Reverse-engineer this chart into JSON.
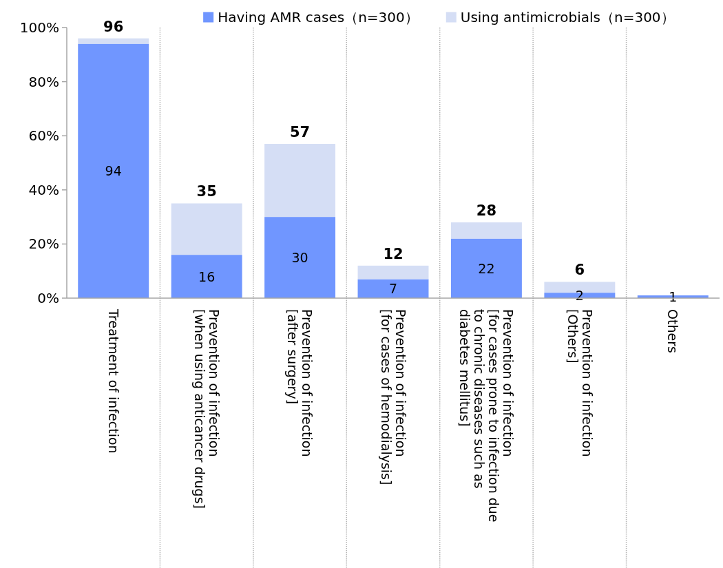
{
  "chart_data": {
    "type": "bar",
    "stacked": true,
    "categories": [
      "Treatment of infection",
      "Prevention of infection\n[when using anticancer drugs]",
      "Prevention of infection\n[after surgery]",
      "Prevention of infection\n[for cases of hemodialysis]",
      "Prevention of infection\n[for cases prone to infection due\nto chronic diseases such as\ndiabetes mellitus]",
      "Prevention of infection\n[Others]",
      "Others"
    ],
    "series": [
      {
        "name": "Having AMR cases（n=300）",
        "color": "#7096ff",
        "values": [
          94,
          16,
          30,
          7,
          22,
          2,
          1
        ],
        "value_labels": [
          "94",
          "16",
          "30",
          "7",
          "22",
          "2",
          "1"
        ]
      },
      {
        "name": "Using antimicrobials（n=300）",
        "color": "#d5def5",
        "values": [
          2,
          19,
          27,
          5,
          6,
          4,
          null
        ]
      }
    ],
    "totals": [
      "96",
      "35",
      "57",
      "12",
      "28",
      "6",
      null
    ],
    "ylim": [
      0,
      100
    ],
    "yticks": [
      {
        "value": 0,
        "label": "0%"
      },
      {
        "value": 20,
        "label": "20%"
      },
      {
        "value": 40,
        "label": "40%"
      },
      {
        "value": 60,
        "label": "60%"
      },
      {
        "value": 80,
        "label": "80%"
      },
      {
        "value": 100,
        "label": "100%"
      }
    ],
    "grid": "x",
    "legend": "top"
  }
}
